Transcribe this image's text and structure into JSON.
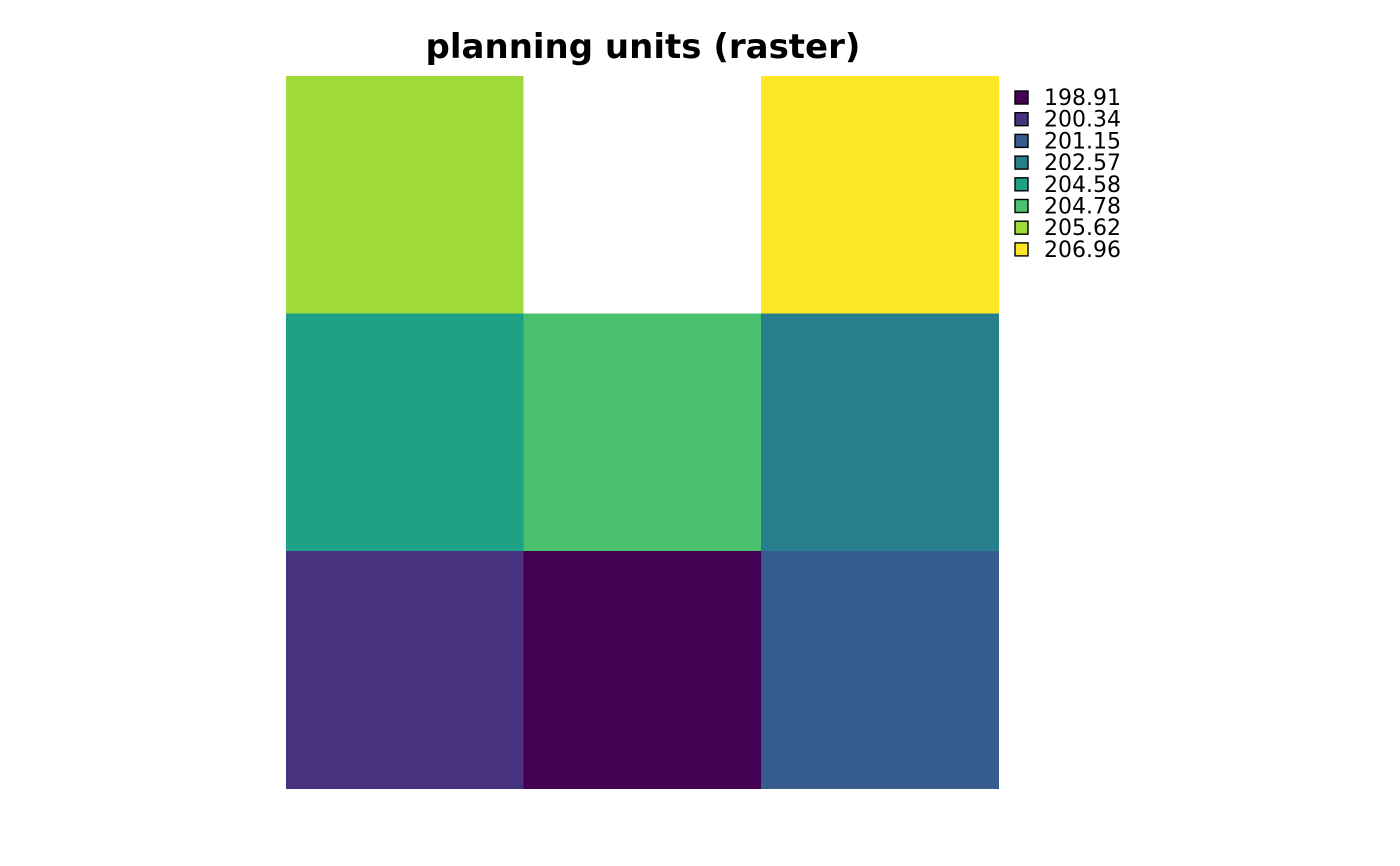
{
  "chart_data": {
    "type": "heatmap",
    "title": "planning units (raster)",
    "nrows": 3,
    "ncols": 3,
    "cells": [
      [
        205.62,
        null,
        206.96
      ],
      [
        204.58,
        204.78,
        202.57
      ],
      [
        200.34,
        198.91,
        201.15
      ]
    ],
    "legend": {
      "placement": "right",
      "entries": [
        {
          "label": "198.91",
          "value": 198.91,
          "color": "#440154"
        },
        {
          "label": "200.34",
          "value": 200.34,
          "color": "#46327E"
        },
        {
          "label": "201.15",
          "value": 201.15,
          "color": "#365C8D"
        },
        {
          "label": "202.57",
          "value": 202.57,
          "color": "#277F8E"
        },
        {
          "label": "204.58",
          "value": 204.58,
          "color": "#1FA187"
        },
        {
          "label": "204.78",
          "value": 204.78,
          "color": "#4AC16D"
        },
        {
          "label": "205.62",
          "value": 205.62,
          "color": "#A0DA39"
        },
        {
          "label": "206.96",
          "value": 206.96,
          "color": "#FDE725"
        }
      ]
    },
    "na_color": "#FFFFFF",
    "grid": false
  }
}
